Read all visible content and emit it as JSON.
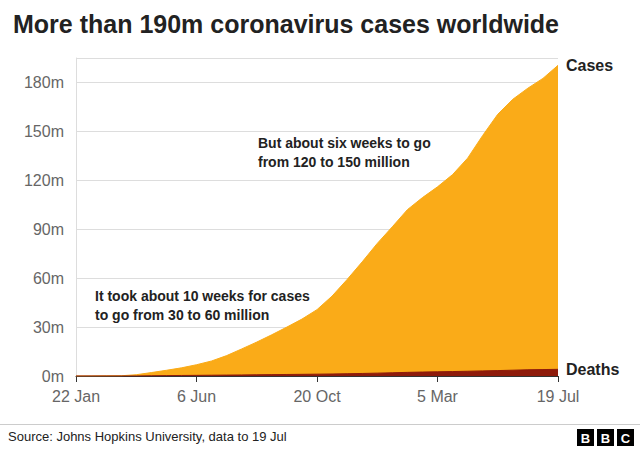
{
  "chart_data": {
    "type": "area",
    "title": "More than 190m coronavirus cases worldwide",
    "categories": [
      "22 Jan",
      null,
      null,
      null,
      null,
      null,
      null,
      null,
      "6 Jun",
      null,
      null,
      null,
      null,
      null,
      null,
      null,
      "20 Oct",
      null,
      null,
      null,
      null,
      null,
      null,
      null,
      "5 Mar",
      null,
      null,
      null,
      null,
      null,
      null,
      null,
      "19 Jul"
    ],
    "series": [
      {
        "name": "Cases",
        "color": "#faab18",
        "values": [
          0.0006,
          0.035,
          0.08,
          0.15,
          0.78,
          2.1,
          3.5,
          5.0,
          6.9,
          9.2,
          12.5,
          16.6,
          20.8,
          25.3,
          30.0,
          34.9,
          40.7,
          49.0,
          59.2,
          70.0,
          81.3,
          91.5,
          102,
          109.4,
          116,
          123.5,
          133.6,
          147.5,
          160.5,
          169.7,
          176.5,
          182.5,
          190.5
        ]
      },
      {
        "name": "Deaths",
        "color": "#8e1b0b",
        "values": [
          0,
          0.0007,
          0.0027,
          0.005,
          0.037,
          0.145,
          0.245,
          0.33,
          0.4,
          0.48,
          0.56,
          0.65,
          0.75,
          0.85,
          0.93,
          1.03,
          1.13,
          1.24,
          1.39,
          1.56,
          1.76,
          1.98,
          2.23,
          2.43,
          2.57,
          2.73,
          2.92,
          3.14,
          3.32,
          3.57,
          3.82,
          3.94,
          4.1
        ]
      }
    ],
    "ylim": [
      0,
      195
    ],
    "yticks": [
      {
        "value": 0,
        "label": "0m"
      },
      {
        "value": 30,
        "label": "30m"
      },
      {
        "value": 60,
        "label": "60m"
      },
      {
        "value": 90,
        "label": "90m"
      },
      {
        "value": 120,
        "label": "120m"
      },
      {
        "value": 150,
        "label": "150m"
      },
      {
        "value": 180,
        "label": "180m"
      }
    ],
    "grid": true,
    "stacked": false,
    "annotations": [
      "But about six weeks to go\nfrom 120 to 150 million",
      "It took about 10 weeks for cases\nto go from 30 to 60 million"
    ],
    "source": "Source: Johns Hopkins University, data to 19 Jul",
    "logo": "BBC"
  }
}
